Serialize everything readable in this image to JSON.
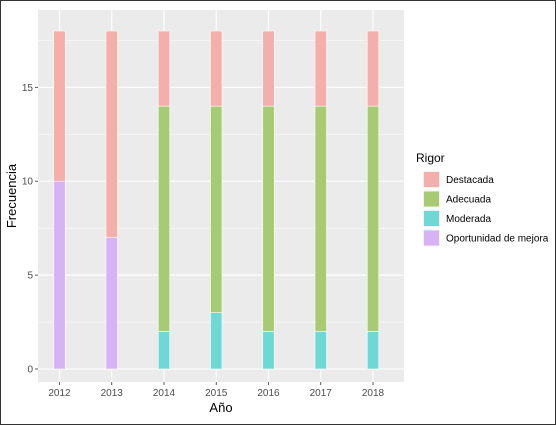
{
  "chart_data": {
    "type": "bar",
    "stacked": true,
    "categories": [
      "2012",
      "2013",
      "2014",
      "2015",
      "2016",
      "2017",
      "2018"
    ],
    "series": [
      {
        "name": "Oportunidad de mejora",
        "color": "#D7B2F5",
        "values": [
          10,
          7,
          0,
          0,
          0,
          0,
          0
        ]
      },
      {
        "name": "Moderada",
        "color": "#6ED8D4",
        "values": [
          0,
          0,
          2,
          3,
          2,
          2,
          2
        ]
      },
      {
        "name": "Adecuada",
        "color": "#A6CB72",
        "values": [
          0,
          0,
          12,
          11,
          12,
          12,
          12
        ]
      },
      {
        "name": "Destacada",
        "color": "#F4AFAA",
        "values": [
          8,
          11,
          4,
          4,
          4,
          4,
          4
        ]
      }
    ],
    "xlabel": "Año",
    "ylabel": "Frecuencia",
    "ylim": [
      0,
      18.9
    ],
    "yticks": [
      0,
      5,
      10,
      15
    ],
    "ytick_labels": [
      "0",
      "5",
      "10",
      "15"
    ],
    "grid": true,
    "legend": {
      "title": "Rigor",
      "position": "right",
      "entries": [
        "Destacada",
        "Adecuada",
        "Moderada",
        "Oportunidad de mejora"
      ]
    },
    "panel_background": "#EBEBEB"
  }
}
